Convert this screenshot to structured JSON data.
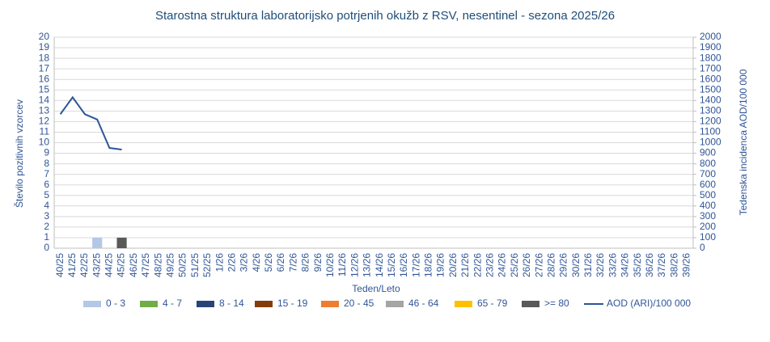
{
  "chart_data": {
    "type": "bar",
    "title": "Starostna struktura  laboratorijsko potrjenih  okužb z RSV, nesentinel - sezona 2025/26",
    "x_label": "Teden/Leto",
    "y_label": "Število pozitivnih vzorcev",
    "y2_label": "Tedenska incidenca AOD/100 000",
    "categories": [
      "40/25",
      "41/25",
      "42/25",
      "43/25",
      "44/25",
      "45/25",
      "46/25",
      "47/25",
      "48/25",
      "49/25",
      "50/25",
      "51/25",
      "52/25",
      "1/26",
      "2/26",
      "3/26",
      "4/26",
      "5/26",
      "6/26",
      "7/26",
      "8/26",
      "9/26",
      "10/26",
      "11/26",
      "12/26",
      "13/26",
      "14/26",
      "15/26",
      "16/26",
      "17/26",
      "18/26",
      "19/26",
      "20/26",
      "21/26",
      "22/26",
      "23/26",
      "24/26",
      "25/26",
      "26/26",
      "27/26",
      "28/26",
      "29/26",
      "30/26",
      "31/26",
      "32/26",
      "33/26",
      "34/26",
      "35/26",
      "36/26",
      "37/26",
      "38/26",
      "39/26"
    ],
    "stacked": true,
    "series": [
      {
        "name": "0 - 3",
        "color": "#b4c7e7",
        "values": [
          0,
          0,
          0,
          1,
          0,
          0,
          null,
          null,
          null,
          null,
          null,
          null,
          null,
          null,
          null,
          null,
          null,
          null,
          null,
          null,
          null,
          null,
          null,
          null,
          null,
          null,
          null,
          null,
          null,
          null,
          null,
          null,
          null,
          null,
          null,
          null,
          null,
          null,
          null,
          null,
          null,
          null,
          null,
          null,
          null,
          null,
          null,
          null,
          null,
          null,
          null,
          null
        ]
      },
      {
        "name": "4 - 7",
        "color": "#70ad47",
        "values": [
          0,
          0,
          0,
          0,
          0,
          0,
          null,
          null,
          null,
          null,
          null,
          null,
          null,
          null,
          null,
          null,
          null,
          null,
          null,
          null,
          null,
          null,
          null,
          null,
          null,
          null,
          null,
          null,
          null,
          null,
          null,
          null,
          null,
          null,
          null,
          null,
          null,
          null,
          null,
          null,
          null,
          null,
          null,
          null,
          null,
          null,
          null,
          null,
          null,
          null,
          null,
          null
        ]
      },
      {
        "name": "8 - 14",
        "color": "#264478",
        "values": [
          0,
          0,
          0,
          0,
          0,
          0,
          null,
          null,
          null,
          null,
          null,
          null,
          null,
          null,
          null,
          null,
          null,
          null,
          null,
          null,
          null,
          null,
          null,
          null,
          null,
          null,
          null,
          null,
          null,
          null,
          null,
          null,
          null,
          null,
          null,
          null,
          null,
          null,
          null,
          null,
          null,
          null,
          null,
          null,
          null,
          null,
          null,
          null,
          null,
          null,
          null,
          null
        ]
      },
      {
        "name": "15 - 19",
        "color": "#843c0c",
        "values": [
          0,
          0,
          0,
          0,
          0,
          0,
          null,
          null,
          null,
          null,
          null,
          null,
          null,
          null,
          null,
          null,
          null,
          null,
          null,
          null,
          null,
          null,
          null,
          null,
          null,
          null,
          null,
          null,
          null,
          null,
          null,
          null,
          null,
          null,
          null,
          null,
          null,
          null,
          null,
          null,
          null,
          null,
          null,
          null,
          null,
          null,
          null,
          null,
          null,
          null,
          null,
          null
        ]
      },
      {
        "name": "20 - 45",
        "color": "#ed7d31",
        "values": [
          0,
          0,
          0,
          0,
          0,
          0,
          null,
          null,
          null,
          null,
          null,
          null,
          null,
          null,
          null,
          null,
          null,
          null,
          null,
          null,
          null,
          null,
          null,
          null,
          null,
          null,
          null,
          null,
          null,
          null,
          null,
          null,
          null,
          null,
          null,
          null,
          null,
          null,
          null,
          null,
          null,
          null,
          null,
          null,
          null,
          null,
          null,
          null,
          null,
          null,
          null,
          null
        ]
      },
      {
        "name": "46 - 64",
        "color": "#a5a5a5",
        "values": [
          0,
          0,
          0,
          0,
          0,
          0,
          null,
          null,
          null,
          null,
          null,
          null,
          null,
          null,
          null,
          null,
          null,
          null,
          null,
          null,
          null,
          null,
          null,
          null,
          null,
          null,
          null,
          null,
          null,
          null,
          null,
          null,
          null,
          null,
          null,
          null,
          null,
          null,
          null,
          null,
          null,
          null,
          null,
          null,
          null,
          null,
          null,
          null,
          null,
          null,
          null,
          null
        ]
      },
      {
        "name": "65 - 79",
        "color": "#ffc000",
        "values": [
          0,
          0,
          0,
          0,
          0,
          0,
          null,
          null,
          null,
          null,
          null,
          null,
          null,
          null,
          null,
          null,
          null,
          null,
          null,
          null,
          null,
          null,
          null,
          null,
          null,
          null,
          null,
          null,
          null,
          null,
          null,
          null,
          null,
          null,
          null,
          null,
          null,
          null,
          null,
          null,
          null,
          null,
          null,
          null,
          null,
          null,
          null,
          null,
          null,
          null,
          null,
          null
        ]
      },
      {
        "name": ">= 80",
        "color": "#595959",
        "values": [
          0,
          0,
          0,
          0,
          0,
          1,
          null,
          null,
          null,
          null,
          null,
          null,
          null,
          null,
          null,
          null,
          null,
          null,
          null,
          null,
          null,
          null,
          null,
          null,
          null,
          null,
          null,
          null,
          null,
          null,
          null,
          null,
          null,
          null,
          null,
          null,
          null,
          null,
          null,
          null,
          null,
          null,
          null,
          null,
          null,
          null,
          null,
          null,
          null,
          null,
          null,
          null
        ]
      },
      {
        "name": "AOD (ARI)/100 000",
        "color": "#2f5597",
        "type": "line",
        "axis": "y2",
        "values": [
          1270,
          1430,
          1270,
          1220,
          950,
          935,
          null,
          null,
          null,
          null,
          null,
          null,
          null,
          null,
          null,
          null,
          null,
          null,
          null,
          null,
          null,
          null,
          null,
          null,
          null,
          null,
          null,
          null,
          null,
          null,
          null,
          null,
          null,
          null,
          null,
          null,
          null,
          null,
          null,
          null,
          null,
          null,
          null,
          null,
          null,
          null,
          null,
          null,
          null,
          null,
          null,
          null
        ]
      }
    ],
    "ylim": [
      0,
      20
    ],
    "yticks": [
      0,
      1,
      2,
      3,
      4,
      5,
      6,
      7,
      8,
      9,
      10,
      11,
      12,
      13,
      14,
      15,
      16,
      17,
      18,
      19,
      20
    ],
    "y2lim": [
      0,
      2000
    ],
    "y2ticks": [
      0,
      100,
      200,
      300,
      400,
      500,
      600,
      700,
      800,
      900,
      1000,
      1100,
      1200,
      1300,
      1400,
      1500,
      1600,
      1700,
      1800,
      1900,
      2000
    ],
    "grid": true,
    "legend": "bottom"
  }
}
